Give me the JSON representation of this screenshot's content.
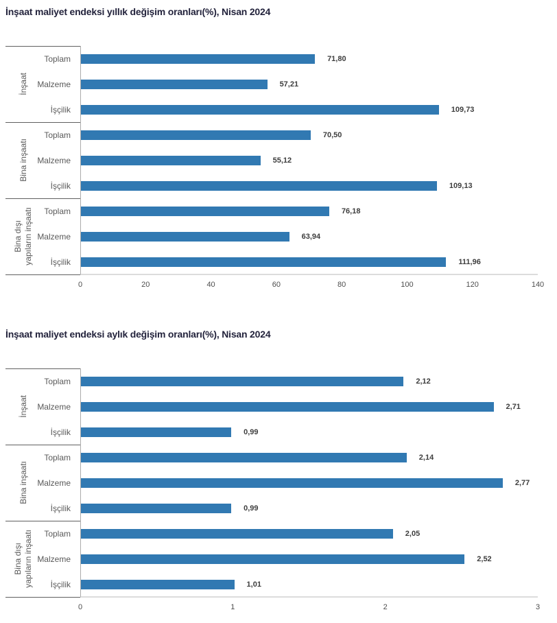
{
  "colors": {
    "bar": "#3179B2",
    "title_text": "#23233C",
    "label_text": "#595959",
    "value_text": "#3D3D3D",
    "tick_text": "#4D4D4D",
    "separator": "#5F5F5F",
    "axis_line": "#DCDCDC",
    "y_axis_line": "#ABABAB",
    "background": "#FFFFFF"
  },
  "chart_data": [
    {
      "type": "bar",
      "orientation": "horizontal",
      "title": "İnşaat maliyet endeksi yıllık değişim oranları(%), Nisan 2024",
      "xlim": [
        0,
        140
      ],
      "xticks": [
        0,
        20,
        40,
        60,
        80,
        100,
        120,
        140
      ],
      "grid": false,
      "legend": false,
      "groups": [
        {
          "label": "İnşaat",
          "rows": [
            {
              "label": "Toplam",
              "value": 71.8,
              "display": "71,80"
            },
            {
              "label": "Malzeme",
              "value": 57.21,
              "display": "57,21"
            },
            {
              "label": "İşçilik",
              "value": 109.73,
              "display": "109,73"
            }
          ]
        },
        {
          "label": "Bina inşaatı",
          "rows": [
            {
              "label": "Toplam",
              "value": 70.5,
              "display": "70,50"
            },
            {
              "label": "Malzeme",
              "value": 55.12,
              "display": "55,12"
            },
            {
              "label": "İşçilik",
              "value": 109.13,
              "display": "109,13"
            }
          ]
        },
        {
          "label": "Bina dışı\nyapıların inşaatı",
          "rows": [
            {
              "label": "Toplam",
              "value": 76.18,
              "display": "76,18"
            },
            {
              "label": "Malzeme",
              "value": 63.94,
              "display": "63,94"
            },
            {
              "label": "İşçilik",
              "value": 111.96,
              "display": "111,96"
            }
          ]
        }
      ]
    },
    {
      "type": "bar",
      "orientation": "horizontal",
      "title": "İnşaat maliyet endeksi aylık değişim oranları(%), Nisan 2024",
      "xlim": [
        0,
        3
      ],
      "xticks": [
        0,
        1,
        2,
        3
      ],
      "grid": false,
      "legend": false,
      "groups": [
        {
          "label": "İnşaat",
          "rows": [
            {
              "label": "Toplam",
              "value": 2.12,
              "display": "2,12"
            },
            {
              "label": "Malzeme",
              "value": 2.71,
              "display": "2,71"
            },
            {
              "label": "İşçilik",
              "value": 0.99,
              "display": "0,99"
            }
          ]
        },
        {
          "label": "Bina inşaatı",
          "rows": [
            {
              "label": "Toplam",
              "value": 2.14,
              "display": "2,14"
            },
            {
              "label": "Malzeme",
              "value": 2.77,
              "display": "2,77"
            },
            {
              "label": "İşçilik",
              "value": 0.99,
              "display": "0,99"
            }
          ]
        },
        {
          "label": "Bina dışı\nyapıların inşaatı",
          "rows": [
            {
              "label": "Toplam",
              "value": 2.05,
              "display": "2,05"
            },
            {
              "label": "Malzeme",
              "value": 2.52,
              "display": "2,52"
            },
            {
              "label": "İşçilik",
              "value": 1.01,
              "display": "1,01"
            }
          ]
        }
      ]
    }
  ]
}
